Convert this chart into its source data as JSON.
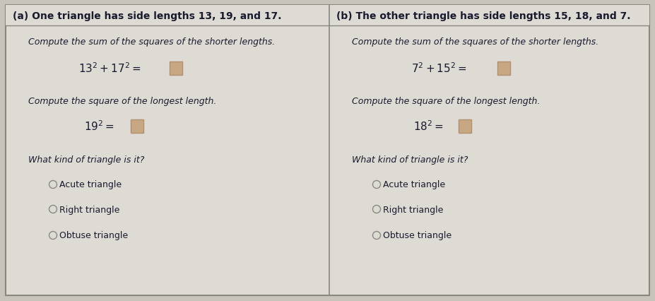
{
  "bg_color": "#c8c4bc",
  "panel_bg": "#dedad4",
  "border_color": "#888880",
  "input_box_color": "#c8a882",
  "input_box_edge": "#b09070",
  "title_a": "(a) One triangle has side lengths 13, 19, and 17.",
  "title_b": "(b) The other triangle has side lengths 15, 18, and 7.",
  "prompt1": "Compute the sum of the squares of the shorter lengths.",
  "prompt2": "Compute the square of the longest length.",
  "prompt3": "What kind of triangle is it?",
  "choices": [
    "Acute triangle",
    "Right triangle",
    "Obtuse triangle"
  ],
  "title_fontsize": 10.0,
  "body_fontsize": 9.0,
  "formula_fontsize": 11.0,
  "choice_fontsize": 9.0,
  "radio_color": "#888880"
}
